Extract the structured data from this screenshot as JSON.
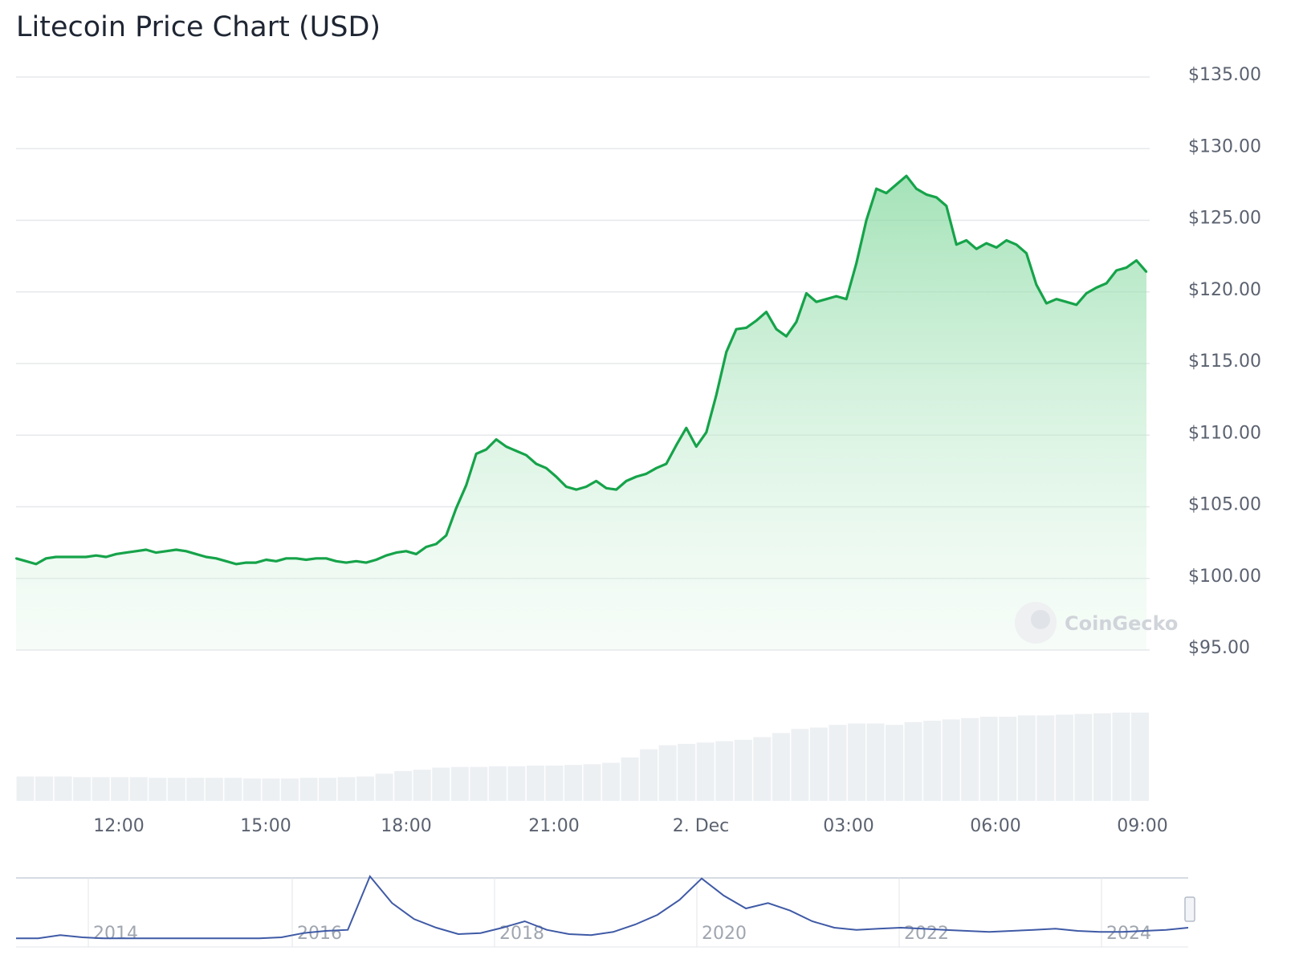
{
  "chart_data": {
    "type": "line",
    "title": "Litecoin Price Chart (USD)",
    "series_color": "#16a34a",
    "currency": "USD",
    "ylim": [
      95,
      135
    ],
    "y_ticks": [
      "$135.00",
      "$130.00",
      "$125.00",
      "$120.00",
      "$115.00",
      "$110.00",
      "$105.00",
      "$100.00",
      "$95.00"
    ],
    "x_ticks": [
      "12:00",
      "15:00",
      "18:00",
      "21:00",
      "2. Dec",
      "03:00",
      "06:00",
      "09:00"
    ],
    "grid": true,
    "price_series": {
      "x_start_hours_from_1200": -2.1,
      "x_end_hours_from_1200": 21.9,
      "values": [
        101.4,
        101.2,
        101.0,
        101.4,
        101.5,
        101.5,
        101.5,
        101.5,
        101.6,
        101.5,
        101.7,
        101.8,
        101.9,
        102.0,
        101.8,
        101.9,
        102.0,
        101.9,
        101.7,
        101.5,
        101.4,
        101.2,
        101.0,
        101.1,
        101.1,
        101.3,
        101.2,
        101.4,
        101.4,
        101.3,
        101.4,
        101.4,
        101.2,
        101.1,
        101.2,
        101.1,
        101.3,
        101.6,
        101.8,
        101.9,
        101.7,
        102.2,
        102.4,
        103.0,
        104.9,
        106.5,
        108.7,
        109.0,
        109.7,
        109.2,
        108.9,
        108.6,
        108.0,
        107.7,
        107.1,
        106.4,
        106.2,
        106.4,
        106.8,
        106.3,
        106.2,
        106.8,
        107.1,
        107.3,
        107.7,
        108.0,
        109.3,
        110.5,
        109.2,
        110.2,
        112.8,
        115.8,
        117.4,
        117.5,
        118.0,
        118.6,
        117.4,
        116.9,
        117.9,
        119.9,
        119.3,
        119.5,
        119.7,
        119.5,
        122.0,
        125.0,
        127.2,
        126.9,
        127.5,
        128.1,
        127.2,
        126.8,
        126.6,
        126.0,
        123.3,
        123.6,
        123.0,
        123.4,
        123.1,
        123.6,
        123.3,
        122.7,
        120.5,
        119.2,
        119.5,
        119.3,
        119.1,
        119.9,
        120.3,
        120.6,
        121.5,
        121.7,
        122.2,
        121.4
      ]
    },
    "volume_series": {
      "values": [
        1.8,
        1.8,
        1.8,
        1.75,
        1.75,
        1.75,
        1.75,
        1.7,
        1.7,
        1.7,
        1.7,
        1.7,
        1.65,
        1.65,
        1.65,
        1.7,
        1.7,
        1.75,
        1.8,
        2.0,
        2.2,
        2.3,
        2.45,
        2.5,
        2.5,
        2.55,
        2.55,
        2.6,
        2.6,
        2.65,
        2.7,
        2.8,
        3.2,
        3.8,
        4.1,
        4.2,
        4.3,
        4.4,
        4.5,
        4.7,
        5.0,
        5.3,
        5.4,
        5.6,
        5.7,
        5.7,
        5.6,
        5.8,
        5.9,
        6.0,
        6.1,
        6.2,
        6.2,
        6.3,
        6.3,
        6.35,
        6.4,
        6.45,
        6.5,
        6.5
      ]
    },
    "navigator": {
      "x_ticks": [
        "2014",
        "2016",
        "2018",
        "2020",
        "2022",
        "2024"
      ],
      "values": [
        2,
        2,
        5,
        3,
        2,
        2,
        2,
        2,
        2,
        2,
        2,
        2,
        3,
        7,
        9,
        10,
        60,
        35,
        20,
        12,
        6,
        7,
        12,
        18,
        10,
        6,
        5,
        8,
        15,
        24,
        38,
        58,
        42,
        30,
        35,
        28,
        18,
        12,
        10,
        11,
        12,
        11,
        10,
        9,
        8,
        9,
        10,
        11,
        9,
        8,
        8,
        9,
        10,
        12
      ]
    },
    "watermark": "CoinGecko"
  }
}
